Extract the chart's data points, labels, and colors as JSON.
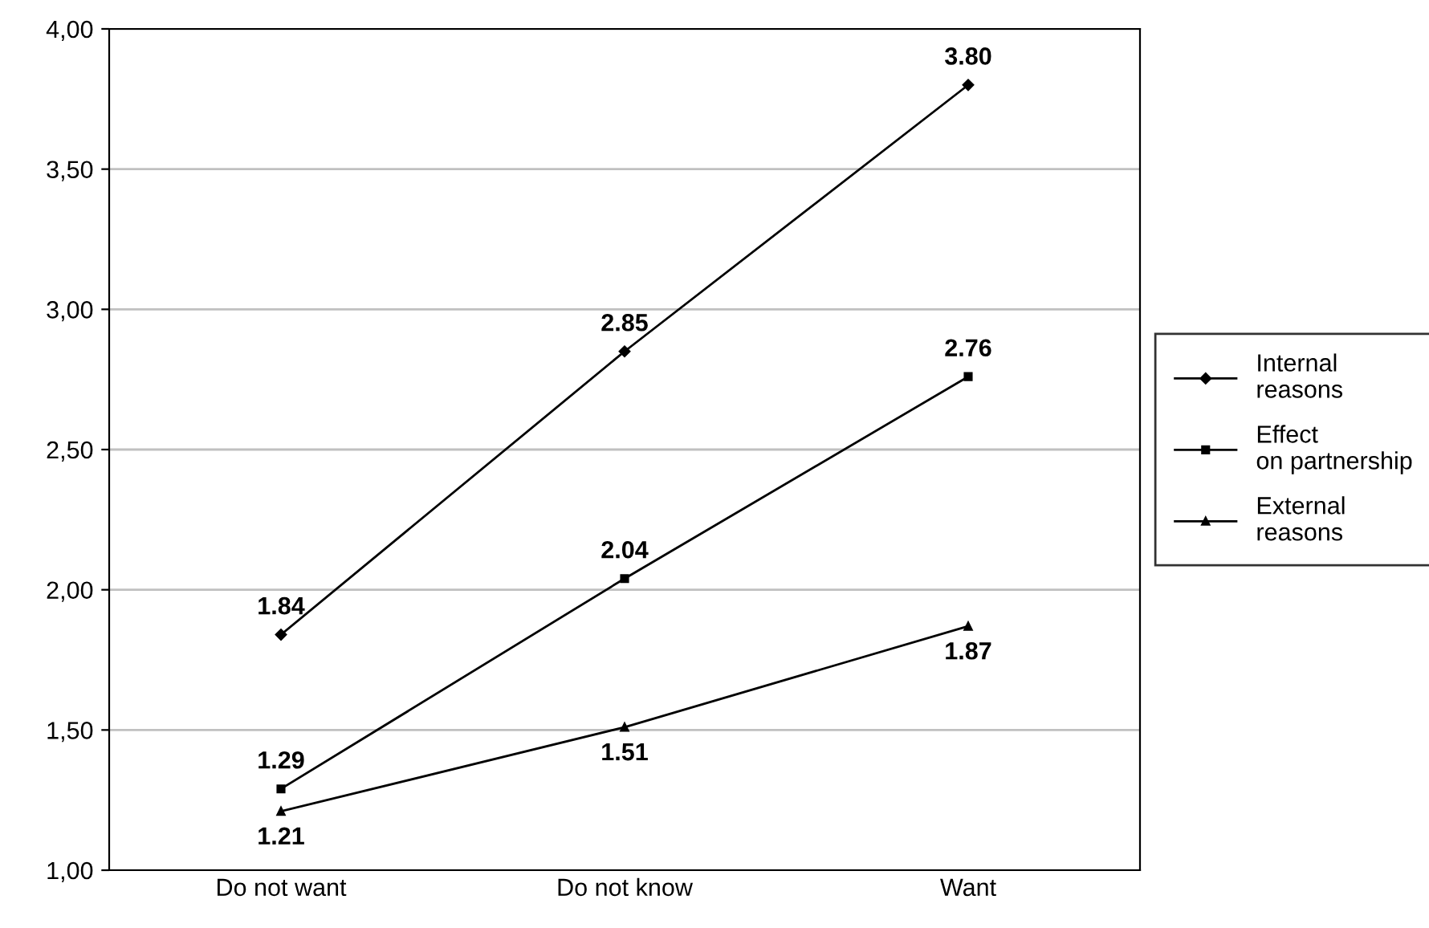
{
  "chart_data": {
    "type": "line",
    "categories": [
      "Do not want",
      "Do not know",
      "Want"
    ],
    "series": [
      {
        "name": "Internal reasons",
        "color": "#000000",
        "marker": "diamond",
        "values": [
          1.84,
          2.85,
          3.8
        ],
        "value_labels": [
          "1.84",
          "2.85",
          "3.80"
        ]
      },
      {
        "name": "Effect on partnership",
        "color": "#000000",
        "marker": "square",
        "values": [
          1.29,
          2.04,
          2.76
        ],
        "value_labels": [
          "1.29",
          "2.04",
          "2.76"
        ]
      },
      {
        "name": "External reasons",
        "color": "#000000",
        "marker": "triangle",
        "values": [
          1.21,
          1.51,
          1.87
        ],
        "value_labels": [
          "1.21",
          "1.51",
          "1.87"
        ]
      }
    ],
    "ylim": [
      1.0,
      4.0
    ],
    "yticks": [
      {
        "value": 1.0,
        "label": "1,00"
      },
      {
        "value": 1.5,
        "label": "1,50"
      },
      {
        "value": 2.0,
        "label": "2,00"
      },
      {
        "value": 2.5,
        "label": "2,50"
      },
      {
        "value": 3.0,
        "label": "3,00"
      },
      {
        "value": 3.5,
        "label": "3,50"
      },
      {
        "value": 4.0,
        "label": "4,00"
      }
    ],
    "grid": "y",
    "legend": "right",
    "line_style": "solid"
  }
}
